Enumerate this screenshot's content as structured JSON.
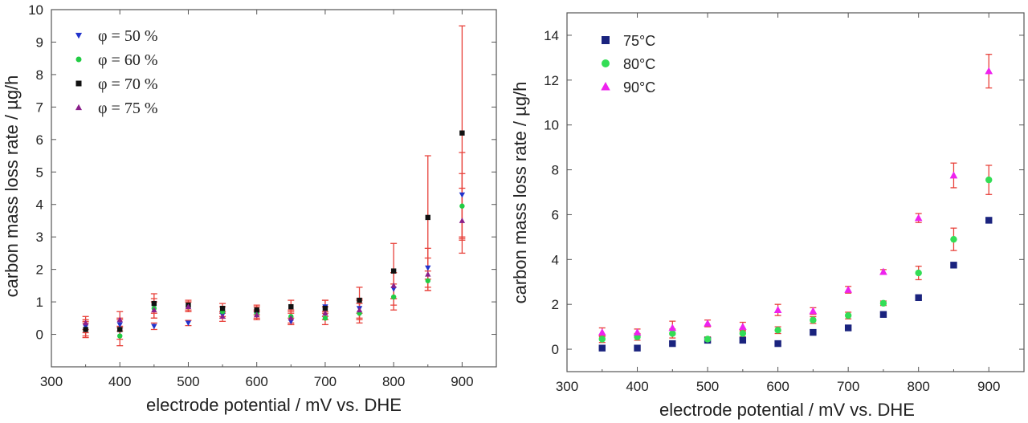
{
  "chart_data": [
    {
      "type": "scatter",
      "title": "",
      "xlabel": "electrode potential / mV vs. DHE",
      "ylabel": "carbon mass loss rate / µg/h",
      "xlim": [
        300,
        950
      ],
      "ylim": [
        -1,
        10
      ],
      "xticks": [
        "300",
        "400",
        "500",
        "600",
        "700",
        "800",
        "900"
      ],
      "yticks": [
        "0",
        "1",
        "2",
        "3",
        "4",
        "5",
        "6",
        "7",
        "8",
        "9",
        "10"
      ],
      "grid": false,
      "legend_position": "top-left",
      "error_bar_color": "#e8423b",
      "series": [
        {
          "name": "φ = 50 %",
          "marker": "triangle-down",
          "color": "#2233cc",
          "x": [
            350,
            400,
            450,
            500,
            550,
            600,
            650,
            700,
            750,
            800,
            850,
            900
          ],
          "y": [
            0.25,
            0.3,
            0.25,
            0.35,
            0.6,
            0.6,
            0.4,
            0.85,
            0.8,
            1.4,
            2.05,
            4.3
          ],
          "err": [
            0.2,
            0.2,
            0.1,
            0.08,
            0.1,
            0.1,
            0.1,
            0.2,
            0.3,
            0.5,
            0.6,
            1.3
          ]
        },
        {
          "name": "φ = 60 %",
          "marker": "circle",
          "color": "#22cc44",
          "x": [
            350,
            400,
            450,
            500,
            550,
            600,
            650,
            700,
            750,
            800,
            850,
            900
          ],
          "y": [
            0.15,
            -0.05,
            0.8,
            0.85,
            0.7,
            0.65,
            0.55,
            0.5,
            0.65,
            1.15,
            1.65,
            3.95
          ],
          "err": [
            0.2,
            0.3,
            0.3,
            0.15,
            0.15,
            0.2,
            0.2,
            0.2,
            0.3,
            0.4,
            0.3,
            1.0
          ]
        },
        {
          "name": "φ = 70 %",
          "marker": "square",
          "color": "#111111",
          "x": [
            350,
            400,
            450,
            500,
            550,
            600,
            650,
            700,
            750,
            800,
            850,
            900
          ],
          "y": [
            0.15,
            0.15,
            0.95,
            0.9,
            0.8,
            0.75,
            0.85,
            0.8,
            1.05,
            1.95,
            3.6,
            6.2
          ],
          "err": [
            0.25,
            0.3,
            0.3,
            0.15,
            0.15,
            0.15,
            0.2,
            0.25,
            0.4,
            0.85,
            1.9,
            3.3
          ]
        },
        {
          "name": "φ = 75 %",
          "marker": "triangle-up",
          "color": "#8a1f8a",
          "x": [
            350,
            400,
            450,
            500,
            550,
            600,
            650,
            700,
            750,
            800,
            850,
            900
          ],
          "y": [
            0.35,
            0.45,
            0.75,
            0.85,
            0.55,
            0.6,
            0.5,
            0.65,
            0.75,
            1.5,
            1.85,
            3.5
          ],
          "err": [
            0.2,
            0.25,
            0.25,
            0.15,
            0.15,
            0.15,
            0.2,
            0.2,
            0.3,
            0.4,
            0.5,
            1.0
          ]
        }
      ]
    },
    {
      "type": "scatter",
      "title": "",
      "xlabel": "electrode potential / mV vs. DHE",
      "ylabel": "carbon mass loss rate / µg/h",
      "xlim": [
        300,
        950
      ],
      "ylim": [
        -1,
        15
      ],
      "xticks": [
        "300",
        "400",
        "500",
        "600",
        "700",
        "800",
        "900"
      ],
      "yticks": [
        "0",
        "2",
        "4",
        "6",
        "8",
        "10",
        "12",
        "14"
      ],
      "grid": false,
      "legend_position": "top-left",
      "error_bar_color": "#e8423b",
      "series": [
        {
          "name": "75°C",
          "marker": "square",
          "color": "#1a237e",
          "x": [
            350,
            400,
            450,
            500,
            550,
            600,
            650,
            700,
            750,
            800,
            850,
            900
          ],
          "y": [
            0.05,
            0.05,
            0.25,
            0.4,
            0.4,
            0.25,
            0.75,
            0.95,
            1.55,
            2.3,
            3.75,
            5.75
          ],
          "err": [
            0.05,
            0.05,
            0.08,
            0.1,
            0.1,
            0.08,
            0.1,
            0.1,
            0.1,
            0.1,
            0.1,
            0.1
          ]
        },
        {
          "name": "80°C",
          "marker": "circle",
          "color": "#33dd55",
          "x": [
            350,
            400,
            450,
            500,
            550,
            600,
            650,
            700,
            750,
            800,
            850,
            900
          ],
          "y": [
            0.45,
            0.55,
            0.7,
            0.45,
            0.7,
            0.85,
            1.3,
            1.5,
            2.05,
            3.4,
            4.9,
            7.55
          ],
          "err": [
            0.15,
            0.15,
            0.2,
            0.1,
            0.15,
            0.15,
            0.15,
            0.15,
            0.1,
            0.3,
            0.5,
            0.65
          ]
        },
        {
          "name": "90°C",
          "marker": "triangle-up",
          "color": "#ee22ee",
          "x": [
            350,
            400,
            450,
            500,
            550,
            600,
            650,
            700,
            750,
            800,
            850,
            900
          ],
          "y": [
            0.75,
            0.75,
            0.95,
            1.15,
            1.0,
            1.75,
            1.7,
            2.65,
            3.45,
            5.85,
            7.75,
            12.4
          ],
          "err": [
            0.2,
            0.15,
            0.3,
            0.15,
            0.2,
            0.25,
            0.15,
            0.15,
            0.1,
            0.2,
            0.55,
            0.75
          ]
        }
      ]
    }
  ]
}
